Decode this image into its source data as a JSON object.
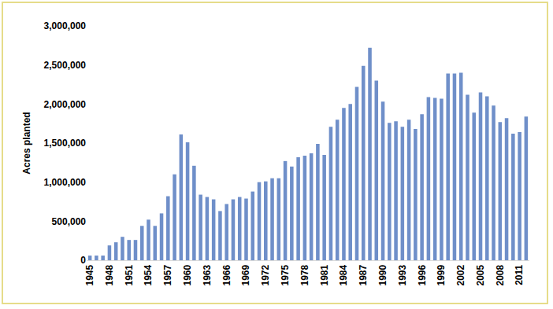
{
  "chart_data": {
    "type": "bar",
    "y_label": "Acres planted",
    "categories": [
      "1945",
      null,
      null,
      "1948",
      null,
      null,
      "1951",
      null,
      null,
      "1954",
      null,
      null,
      "1957",
      null,
      null,
      "1960",
      null,
      null,
      "1963",
      null,
      null,
      "1966",
      null,
      null,
      "1969",
      null,
      null,
      "1972",
      null,
      null,
      "1975",
      null,
      null,
      "1978",
      null,
      null,
      "1981",
      null,
      null,
      "1984",
      null,
      null,
      "1987",
      null,
      null,
      "1990",
      null,
      null,
      "1993",
      null,
      null,
      "1996",
      null,
      null,
      "1999",
      null,
      null,
      "2002",
      null,
      null,
      "2005",
      null,
      null,
      "2008",
      null,
      null,
      "2011",
      null
    ],
    "values": [
      60000,
      60000,
      60000,
      190000,
      230000,
      300000,
      260000,
      260000,
      440000,
      520000,
      440000,
      600000,
      820000,
      1100000,
      1610000,
      1510000,
      1210000,
      840000,
      810000,
      780000,
      630000,
      720000,
      780000,
      810000,
      790000,
      880000,
      1000000,
      1010000,
      1050000,
      1050000,
      1270000,
      1200000,
      1320000,
      1340000,
      1370000,
      1490000,
      1350000,
      1710000,
      1800000,
      1950000,
      2000000,
      2220000,
      2490000,
      2720000,
      2300000,
      2030000,
      1760000,
      1780000,
      1710000,
      1800000,
      1680000,
      1870000,
      2090000,
      2080000,
      2070000,
      2390000,
      2390000,
      2400000,
      2120000,
      1890000,
      2150000,
      2100000,
      1980000,
      1770000,
      1820000,
      1620000,
      1640000,
      1840000
    ],
    "color": "#6f8fc9",
    "ylim": [
      0,
      3000000
    ],
    "yticks": [
      0,
      {
        "value": 500000,
        "label": "500,000"
      },
      {
        "value": 1000000,
        "label": "1,000,000"
      },
      {
        "value": 1500000,
        "label": "1,500,000"
      },
      {
        "value": 2000000,
        "label": "2,000,000"
      },
      {
        "value": 2500000,
        "label": "2,500,000"
      },
      {
        "value": 3000000,
        "label": "3,000,000"
      }
    ],
    "grid": false
  }
}
